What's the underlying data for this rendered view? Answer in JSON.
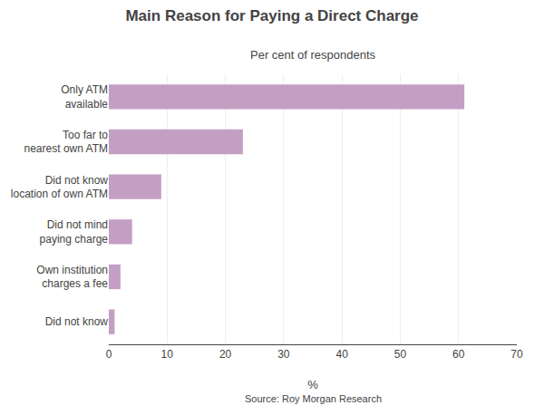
{
  "chart_data": {
    "type": "bar",
    "orientation": "horizontal",
    "title": "Main Reason for Paying a Direct Charge",
    "subtitle": "Per cent of respondents",
    "xlabel": "%",
    "source": "Source: Roy Morgan Research",
    "categories": [
      "Did not know",
      "Own institution\ncharges a fee",
      "Did not mind\npaying charge",
      "Did not know\nlocation of own ATM",
      "Too far to\nnearest own ATM",
      "Only ATM\navailable"
    ],
    "values": [
      1,
      2,
      4,
      9,
      23,
      61
    ],
    "color": "#c49fc4",
    "xlim": [
      0,
      70
    ],
    "xticks": [
      0,
      10,
      20,
      30,
      40,
      50,
      60,
      70
    ],
    "grid": true
  }
}
